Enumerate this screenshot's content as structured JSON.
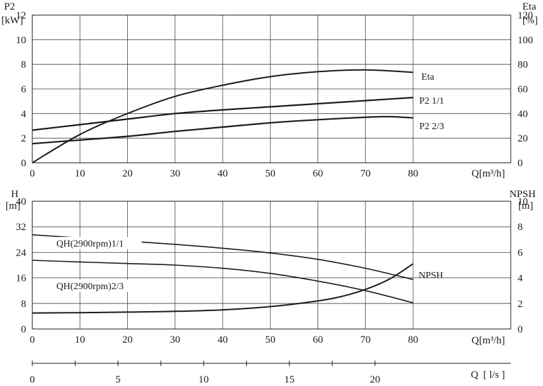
{
  "chart_data": [
    {
      "type": "line",
      "xlabel": "Q[m³/h]",
      "xlim": [
        0,
        80
      ],
      "x_ticks": [
        "0",
        "10",
        "20",
        "30",
        "40",
        "50",
        "60",
        "70",
        "80"
      ],
      "y_left": {
        "label": "P2",
        "unit": "[kW]",
        "ylim": [
          0,
          12
        ],
        "ticks": [
          "0",
          "2",
          "4",
          "6",
          "8",
          "10",
          "12"
        ]
      },
      "y_right": {
        "label": "Eta",
        "unit": "[%]",
        "ylim": [
          0,
          120
        ],
        "ticks": [
          "0",
          "20",
          "40",
          "60",
          "80",
          "100",
          "120"
        ]
      },
      "grid": true,
      "series": [
        {
          "name": "Eta",
          "axis": "right",
          "x": [
            0,
            10,
            20,
            30,
            40,
            50,
            60,
            70,
            80
          ],
          "y": [
            0,
            23,
            40,
            54,
            63,
            70,
            74,
            75.5,
            73.5
          ]
        },
        {
          "name": "P2 1/1",
          "axis": "left",
          "x": [
            0,
            10,
            20,
            30,
            40,
            50,
            60,
            70,
            80
          ],
          "y": [
            2.65,
            3.1,
            3.55,
            4.0,
            4.3,
            4.55,
            4.8,
            5.05,
            5.3
          ]
        },
        {
          "name": "P2 2/3",
          "axis": "left",
          "x": [
            0,
            10,
            20,
            30,
            40,
            50,
            60,
            70,
            75,
            80
          ],
          "y": [
            1.55,
            1.85,
            2.15,
            2.55,
            2.9,
            3.25,
            3.5,
            3.7,
            3.75,
            3.65
          ]
        }
      ]
    },
    {
      "type": "line",
      "xlabel": "Q[m³/h]",
      "xlim": [
        0,
        80
      ],
      "x_ticks": [
        "0",
        "10",
        "20",
        "30",
        "40",
        "50",
        "60",
        "70",
        "80"
      ],
      "y_left": {
        "label": "H",
        "unit": "[m]",
        "ylim": [
          0,
          40
        ],
        "ticks": [
          "0",
          "8",
          "16",
          "24",
          "32",
          "40"
        ]
      },
      "y_right": {
        "label": "NPSH",
        "unit": "[m]",
        "ylim": [
          0,
          10
        ],
        "ticks": [
          "0",
          "2",
          "4",
          "6",
          "8",
          "10"
        ]
      },
      "grid": true,
      "series": [
        {
          "name": "QH(2900rpm)1/1",
          "axis": "left",
          "x": [
            0,
            10,
            20,
            30,
            40,
            50,
            60,
            70,
            80
          ],
          "y": [
            29.5,
            28.5,
            27.5,
            26.5,
            25.3,
            23.8,
            21.8,
            19.0,
            15.5
          ]
        },
        {
          "name": "QH(2900rpm)2/3",
          "axis": "left",
          "x": [
            0,
            10,
            20,
            30,
            40,
            50,
            60,
            70,
            80
          ],
          "y": [
            21.5,
            21.0,
            20.5,
            20.0,
            19.0,
            17.4,
            15.0,
            12.0,
            8.2
          ]
        },
        {
          "name": "NPSH",
          "axis": "right",
          "x": [
            0,
            10,
            20,
            30,
            40,
            50,
            60,
            65,
            70,
            75,
            80
          ],
          "y": [
            1.25,
            1.28,
            1.32,
            1.38,
            1.5,
            1.75,
            2.2,
            2.55,
            3.1,
            3.9,
            5.1
          ]
        }
      ]
    }
  ],
  "secondary_axis": {
    "label": "Q",
    "unit": "[ l/s ]",
    "ticks": [
      "0",
      "5",
      "10",
      "15",
      "20"
    ]
  }
}
